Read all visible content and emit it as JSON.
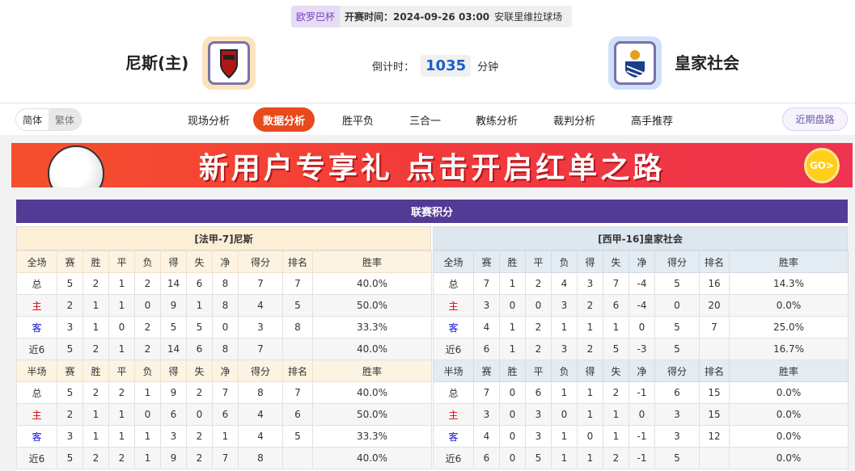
{
  "match": {
    "league": "欧罗巴杯",
    "time": "开赛时间：2024-09-26 03:00",
    "venue": "安联里维拉球场"
  },
  "home": {
    "name": "尼斯(主)",
    "crest": "ogc-nice-crest"
  },
  "away": {
    "name": "皇家社会",
    "crest": "real-sociedad-crest"
  },
  "countdown": {
    "label": "倒计时：",
    "value": "1035",
    "unit": "分钟"
  },
  "lang": {
    "simplified": "简体",
    "traditional": "繁体"
  },
  "tabs": [
    "现场分析",
    "数据分析",
    "胜平负",
    "三合一",
    "教练分析",
    "裁判分析",
    "高手推荐"
  ],
  "active_tab": "数据分析",
  "recent_button": "近期盘路",
  "banner": {
    "text": "新用户专享礼 点击开启红单之路",
    "go": "GO>"
  },
  "standings": {
    "title": "联赛积分",
    "columns": [
      "赛",
      "胜",
      "平",
      "负",
      "得",
      "失",
      "净",
      "得分",
      "排名",
      "胜率"
    ],
    "home": {
      "header": "[法甲-7]尼斯",
      "full": {
        "label": "全场",
        "rows": [
          [
            "总",
            "5",
            "2",
            "1",
            "2",
            "14",
            "6",
            "8",
            "7",
            "7",
            "40.0%"
          ],
          [
            "主",
            "2",
            "1",
            "1",
            "0",
            "9",
            "1",
            "8",
            "4",
            "5",
            "50.0%"
          ],
          [
            "客",
            "3",
            "1",
            "0",
            "2",
            "5",
            "5",
            "0",
            "3",
            "8",
            "33.3%"
          ],
          [
            "近6",
            "5",
            "2",
            "1",
            "2",
            "14",
            "6",
            "8",
            "7",
            "",
            "40.0%"
          ]
        ]
      },
      "half": {
        "label": "半场",
        "rows": [
          [
            "总",
            "5",
            "2",
            "2",
            "1",
            "9",
            "2",
            "7",
            "8",
            "7",
            "40.0%"
          ],
          [
            "主",
            "2",
            "1",
            "1",
            "0",
            "6",
            "0",
            "6",
            "4",
            "6",
            "50.0%"
          ],
          [
            "客",
            "3",
            "1",
            "1",
            "1",
            "3",
            "2",
            "1",
            "4",
            "5",
            "33.3%"
          ],
          [
            "近6",
            "5",
            "2",
            "2",
            "1",
            "9",
            "2",
            "7",
            "8",
            "",
            "40.0%"
          ]
        ]
      }
    },
    "away": {
      "header": "[西甲-16]皇家社会",
      "full": {
        "label": "全场",
        "rows": [
          [
            "总",
            "7",
            "1",
            "2",
            "4",
            "3",
            "7",
            "-4",
            "5",
            "16",
            "14.3%"
          ],
          [
            "主",
            "3",
            "0",
            "0",
            "3",
            "2",
            "6",
            "-4",
            "0",
            "20",
            "0.0%"
          ],
          [
            "客",
            "4",
            "1",
            "2",
            "1",
            "1",
            "1",
            "0",
            "5",
            "7",
            "25.0%"
          ],
          [
            "近6",
            "6",
            "1",
            "2",
            "3",
            "2",
            "5",
            "-3",
            "5",
            "",
            "16.7%"
          ]
        ]
      },
      "half": {
        "label": "半场",
        "rows": [
          [
            "总",
            "7",
            "0",
            "6",
            "1",
            "1",
            "2",
            "-1",
            "6",
            "15",
            "0.0%"
          ],
          [
            "主",
            "3",
            "0",
            "3",
            "0",
            "1",
            "1",
            "0",
            "3",
            "15",
            "0.0%"
          ],
          [
            "客",
            "4",
            "0",
            "3",
            "1",
            "0",
            "1",
            "-1",
            "3",
            "12",
            "0.0%"
          ],
          [
            "近6",
            "6",
            "0",
            "5",
            "1",
            "1",
            "2",
            "-1",
            "5",
            "",
            "0.0%"
          ]
        ]
      }
    }
  }
}
